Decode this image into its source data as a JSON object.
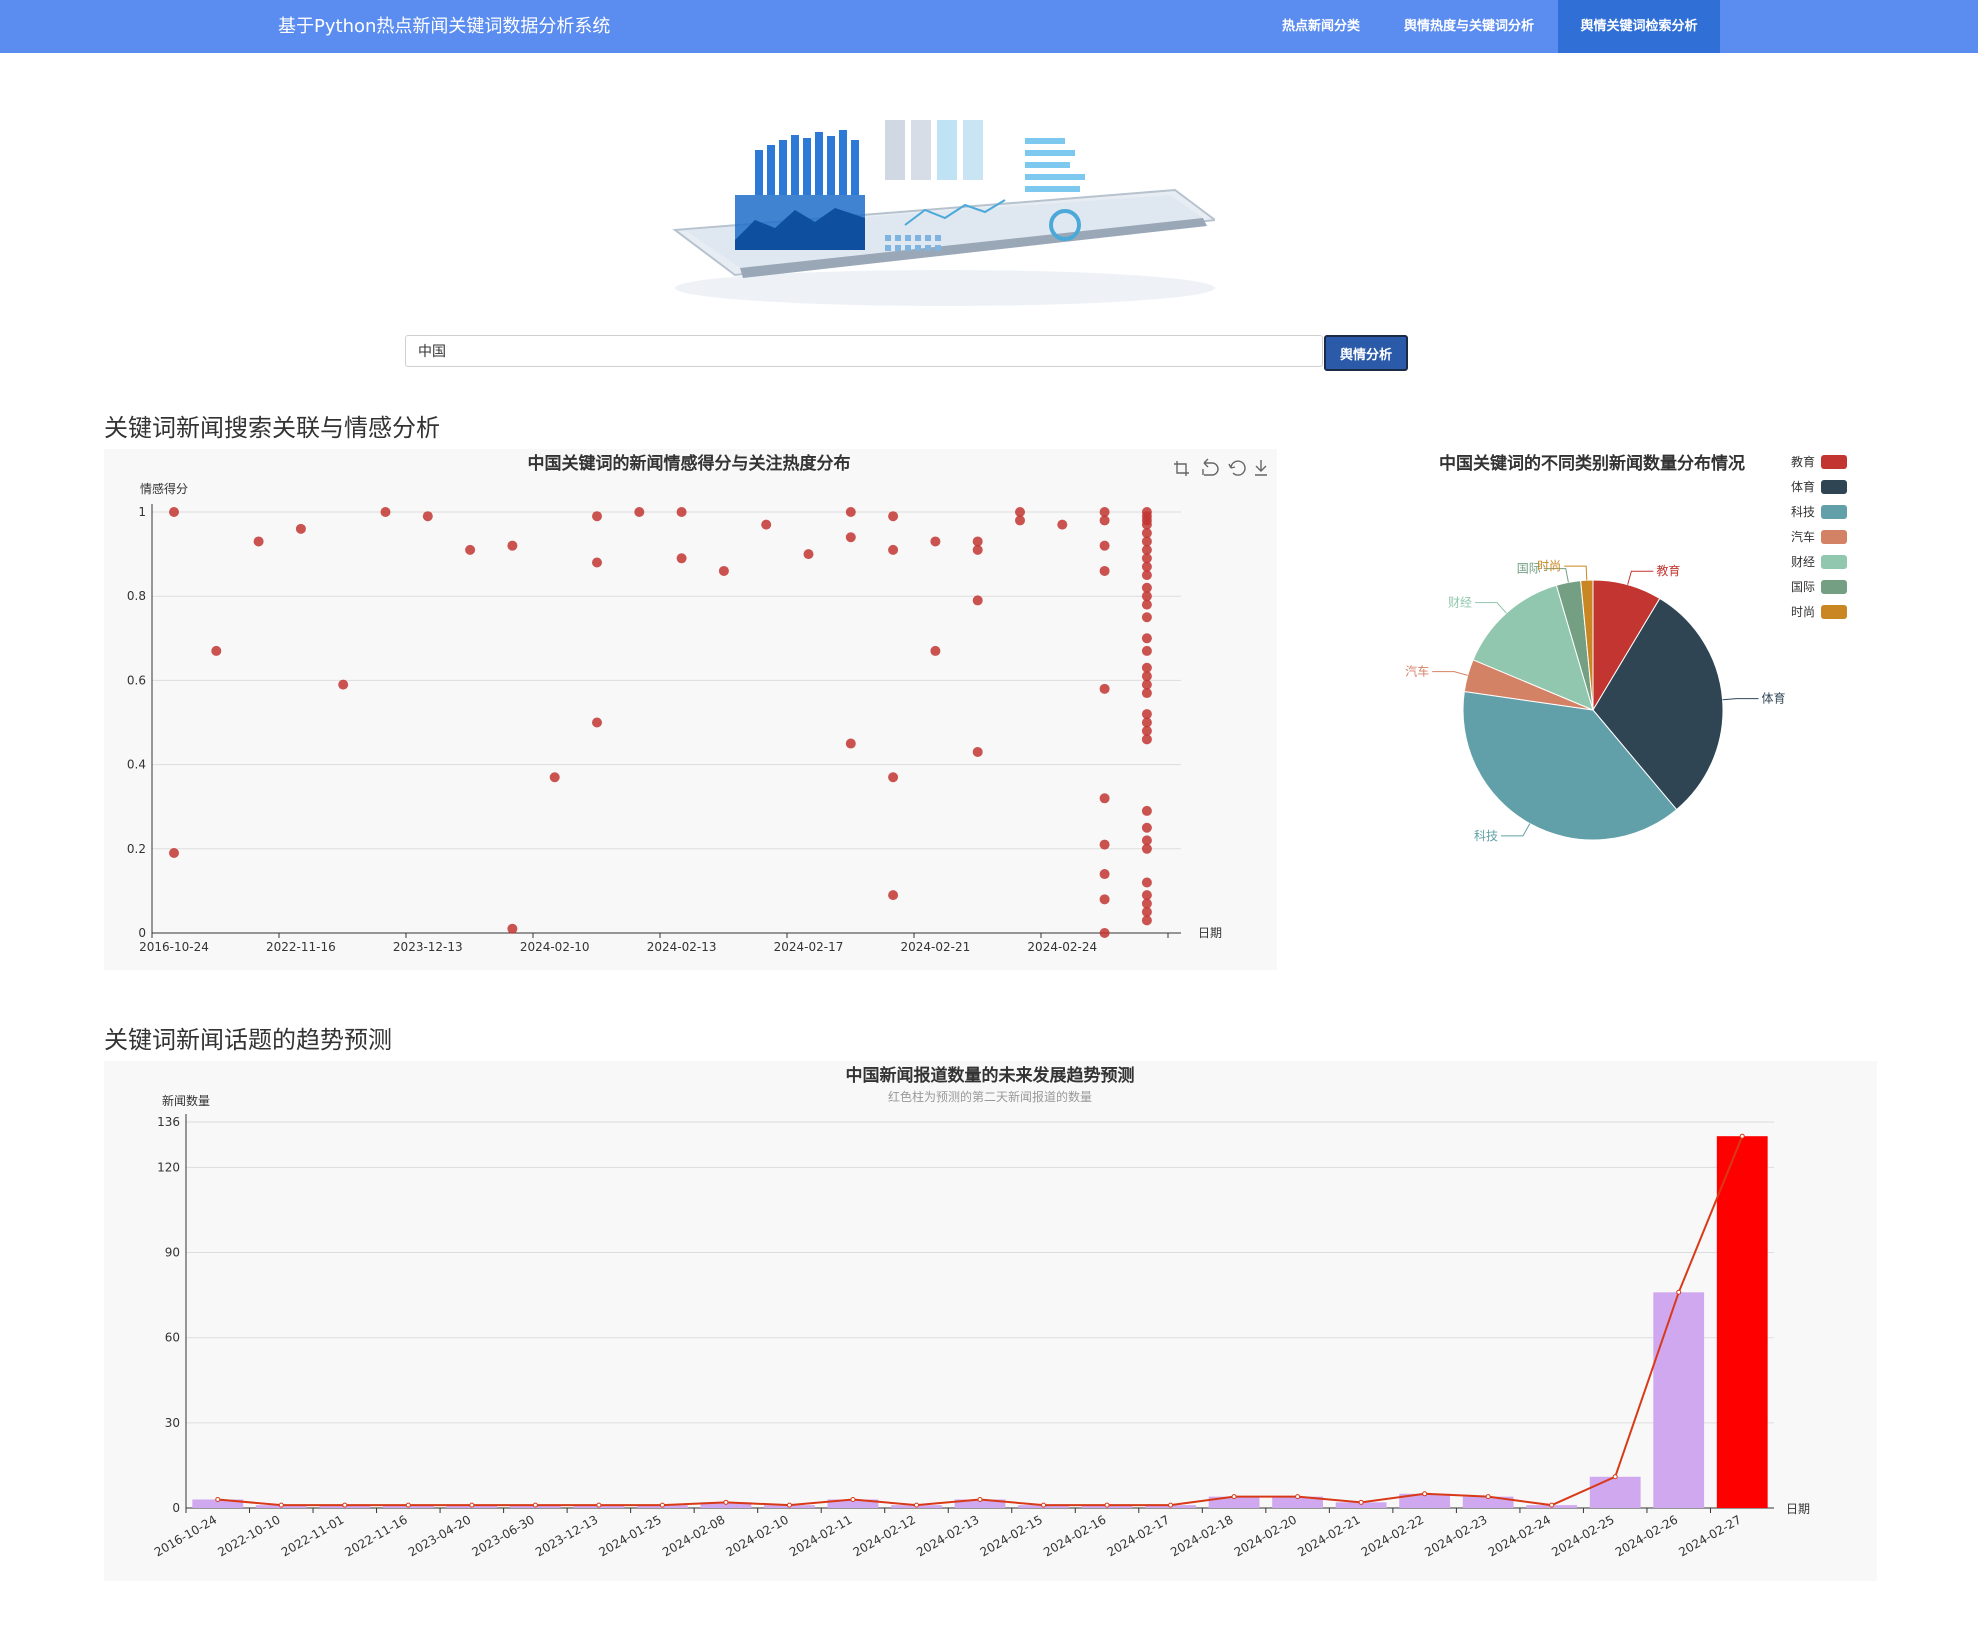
{
  "navbar": {
    "brand": "基于Python热点新闻关键词数据分析系统",
    "items": [
      {
        "label": "热点新闻分类"
      },
      {
        "label": "舆情热度与关键词分析"
      },
      {
        "label": "舆情关键词检索分析"
      }
    ]
  },
  "search": {
    "value": "中国",
    "button_label": "舆情分析"
  },
  "sections": {
    "analysis_title": "关键词新闻搜索关联与情感分析",
    "trend_title": "关键词新闻话题的趋势预测"
  },
  "chart_data": [
    {
      "type": "scatter",
      "title": "中国关键词的新闻情感得分与关注热度分布",
      "ylabel": "情感得分",
      "xlabel": "日期",
      "ylim": [
        0,
        1
      ],
      "yticks": [
        "0",
        "0.2",
        "0.4",
        "0.6",
        "0.8",
        "1"
      ],
      "xtick_labels": [
        "2016-10-24",
        "2022-11-16",
        "2023-12-13",
        "2024-02-10",
        "2024-02-13",
        "2024-02-17",
        "2024-02-21",
        "2024-02-24"
      ],
      "color": "#c23531",
      "points": [
        {
          "x": 0,
          "y": 1.0
        },
        {
          "x": 0,
          "y": 0.19
        },
        {
          "x": 1,
          "y": 0.67
        },
        {
          "x": 2,
          "y": 0.93
        },
        {
          "x": 3,
          "y": 0.96
        },
        {
          "x": 4,
          "y": 0.59
        },
        {
          "x": 5,
          "y": 1.0
        },
        {
          "x": 6,
          "y": 0.99
        },
        {
          "x": 7,
          "y": 0.91
        },
        {
          "x": 8,
          "y": 0.92
        },
        {
          "x": 8,
          "y": 0.01
        },
        {
          "x": 9,
          "y": 0.37
        },
        {
          "x": 10,
          "y": 0.99
        },
        {
          "x": 10,
          "y": 0.88
        },
        {
          "x": 10,
          "y": 0.5
        },
        {
          "x": 11,
          "y": 1.0
        },
        {
          "x": 12,
          "y": 1.0
        },
        {
          "x": 12,
          "y": 0.89
        },
        {
          "x": 13,
          "y": 0.86
        },
        {
          "x": 14,
          "y": 0.97
        },
        {
          "x": 15,
          "y": 0.9
        },
        {
          "x": 16,
          "y": 1.0
        },
        {
          "x": 16,
          "y": 0.94
        },
        {
          "x": 16,
          "y": 0.45
        },
        {
          "x": 17,
          "y": 0.99
        },
        {
          "x": 17,
          "y": 0.91
        },
        {
          "x": 17,
          "y": 0.37
        },
        {
          "x": 17,
          "y": 0.09
        },
        {
          "x": 18,
          "y": 0.93
        },
        {
          "x": 18,
          "y": 0.67
        },
        {
          "x": 19,
          "y": 0.93
        },
        {
          "x": 19,
          "y": 0.91
        },
        {
          "x": 19,
          "y": 0.79
        },
        {
          "x": 19,
          "y": 0.43
        },
        {
          "x": 20,
          "y": 1.0
        },
        {
          "x": 20,
          "y": 0.98
        },
        {
          "x": 21,
          "y": 0.97
        },
        {
          "x": 22,
          "y": 1.0
        },
        {
          "x": 22,
          "y": 0.98
        },
        {
          "x": 22,
          "y": 0.92
        },
        {
          "x": 22,
          "y": 0.86
        },
        {
          "x": 22,
          "y": 0.58
        },
        {
          "x": 22,
          "y": 0.32
        },
        {
          "x": 22,
          "y": 0.21
        },
        {
          "x": 22,
          "y": 0.14
        },
        {
          "x": 22,
          "y": 0.08
        },
        {
          "x": 22,
          "y": 0.0
        },
        {
          "x": 23,
          "y": 1.0
        },
        {
          "x": 23,
          "y": 0.99
        },
        {
          "x": 23,
          "y": 0.98
        },
        {
          "x": 23,
          "y": 0.97
        },
        {
          "x": 23,
          "y": 0.95
        },
        {
          "x": 23,
          "y": 0.93
        },
        {
          "x": 23,
          "y": 0.91
        },
        {
          "x": 23,
          "y": 0.89
        },
        {
          "x": 23,
          "y": 0.87
        },
        {
          "x": 23,
          "y": 0.85
        },
        {
          "x": 23,
          "y": 0.82
        },
        {
          "x": 23,
          "y": 0.8
        },
        {
          "x": 23,
          "y": 0.78
        },
        {
          "x": 23,
          "y": 0.75
        },
        {
          "x": 23,
          "y": 0.7
        },
        {
          "x": 23,
          "y": 0.67
        },
        {
          "x": 23,
          "y": 0.63
        },
        {
          "x": 23,
          "y": 0.61
        },
        {
          "x": 23,
          "y": 0.59
        },
        {
          "x": 23,
          "y": 0.57
        },
        {
          "x": 23,
          "y": 0.52
        },
        {
          "x": 23,
          "y": 0.5
        },
        {
          "x": 23,
          "y": 0.48
        },
        {
          "x": 23,
          "y": 0.46
        },
        {
          "x": 23,
          "y": 0.29
        },
        {
          "x": 23,
          "y": 0.25
        },
        {
          "x": 23,
          "y": 0.22
        },
        {
          "x": 23,
          "y": 0.2
        },
        {
          "x": 23,
          "y": 0.12
        },
        {
          "x": 23,
          "y": 0.09
        },
        {
          "x": 23,
          "y": 0.07
        },
        {
          "x": 23,
          "y": 0.05
        },
        {
          "x": 23,
          "y": 0.03
        }
      ]
    },
    {
      "type": "pie",
      "title": "中国关键词的不同类别新闻数量分布情况",
      "legend_position": "top-right",
      "slices": [
        {
          "name": "教育",
          "value": 8.5,
          "color": "#c23531"
        },
        {
          "name": "体育",
          "value": 30,
          "color": "#2f4554"
        },
        {
          "name": "科技",
          "value": 38,
          "color": "#61a0a8"
        },
        {
          "name": "汽车",
          "value": 4,
          "color": "#d48265"
        },
        {
          "name": "财经",
          "value": 14,
          "color": "#91c7ae"
        },
        {
          "name": "国际",
          "value": 3,
          "color": "#749f83"
        },
        {
          "name": "时尚",
          "value": 1.5,
          "color": "#ca8622"
        }
      ]
    },
    {
      "type": "bar",
      "title": "中国新闻报道数量的未来发展趋势预测",
      "subtitle": "红色柱为预测的第二天新闻报道的数量",
      "ylabel": "新闻数量",
      "xlabel": "日期",
      "ylim": [
        0,
        136
      ],
      "yticks": [
        "0",
        "30",
        "60",
        "90",
        "120",
        "136"
      ],
      "categories": [
        "2016-10-24",
        "2022-10-10",
        "2022-11-01",
        "2022-11-16",
        "2023-04-20",
        "2023-06-30",
        "2023-12-13",
        "2024-01-25",
        "2024-02-08",
        "2024-02-10",
        "2024-02-11",
        "2024-02-12",
        "2024-02-13",
        "2024-02-15",
        "2024-02-16",
        "2024-02-17",
        "2024-02-18",
        "2024-02-20",
        "2024-02-21",
        "2024-02-22",
        "2024-02-23",
        "2024-02-24",
        "2024-02-25",
        "2024-02-26",
        "2024-02-27"
      ],
      "values": [
        3,
        1,
        1,
        1,
        1,
        1,
        1,
        1,
        2,
        1,
        3,
        1,
        3,
        1,
        1,
        1,
        4,
        4,
        2,
        5,
        4,
        1,
        11,
        76,
        131
      ],
      "bar_color": "#d0a8f0",
      "predicted_color": "#ff0000",
      "line_color": "#d83a18"
    }
  ]
}
